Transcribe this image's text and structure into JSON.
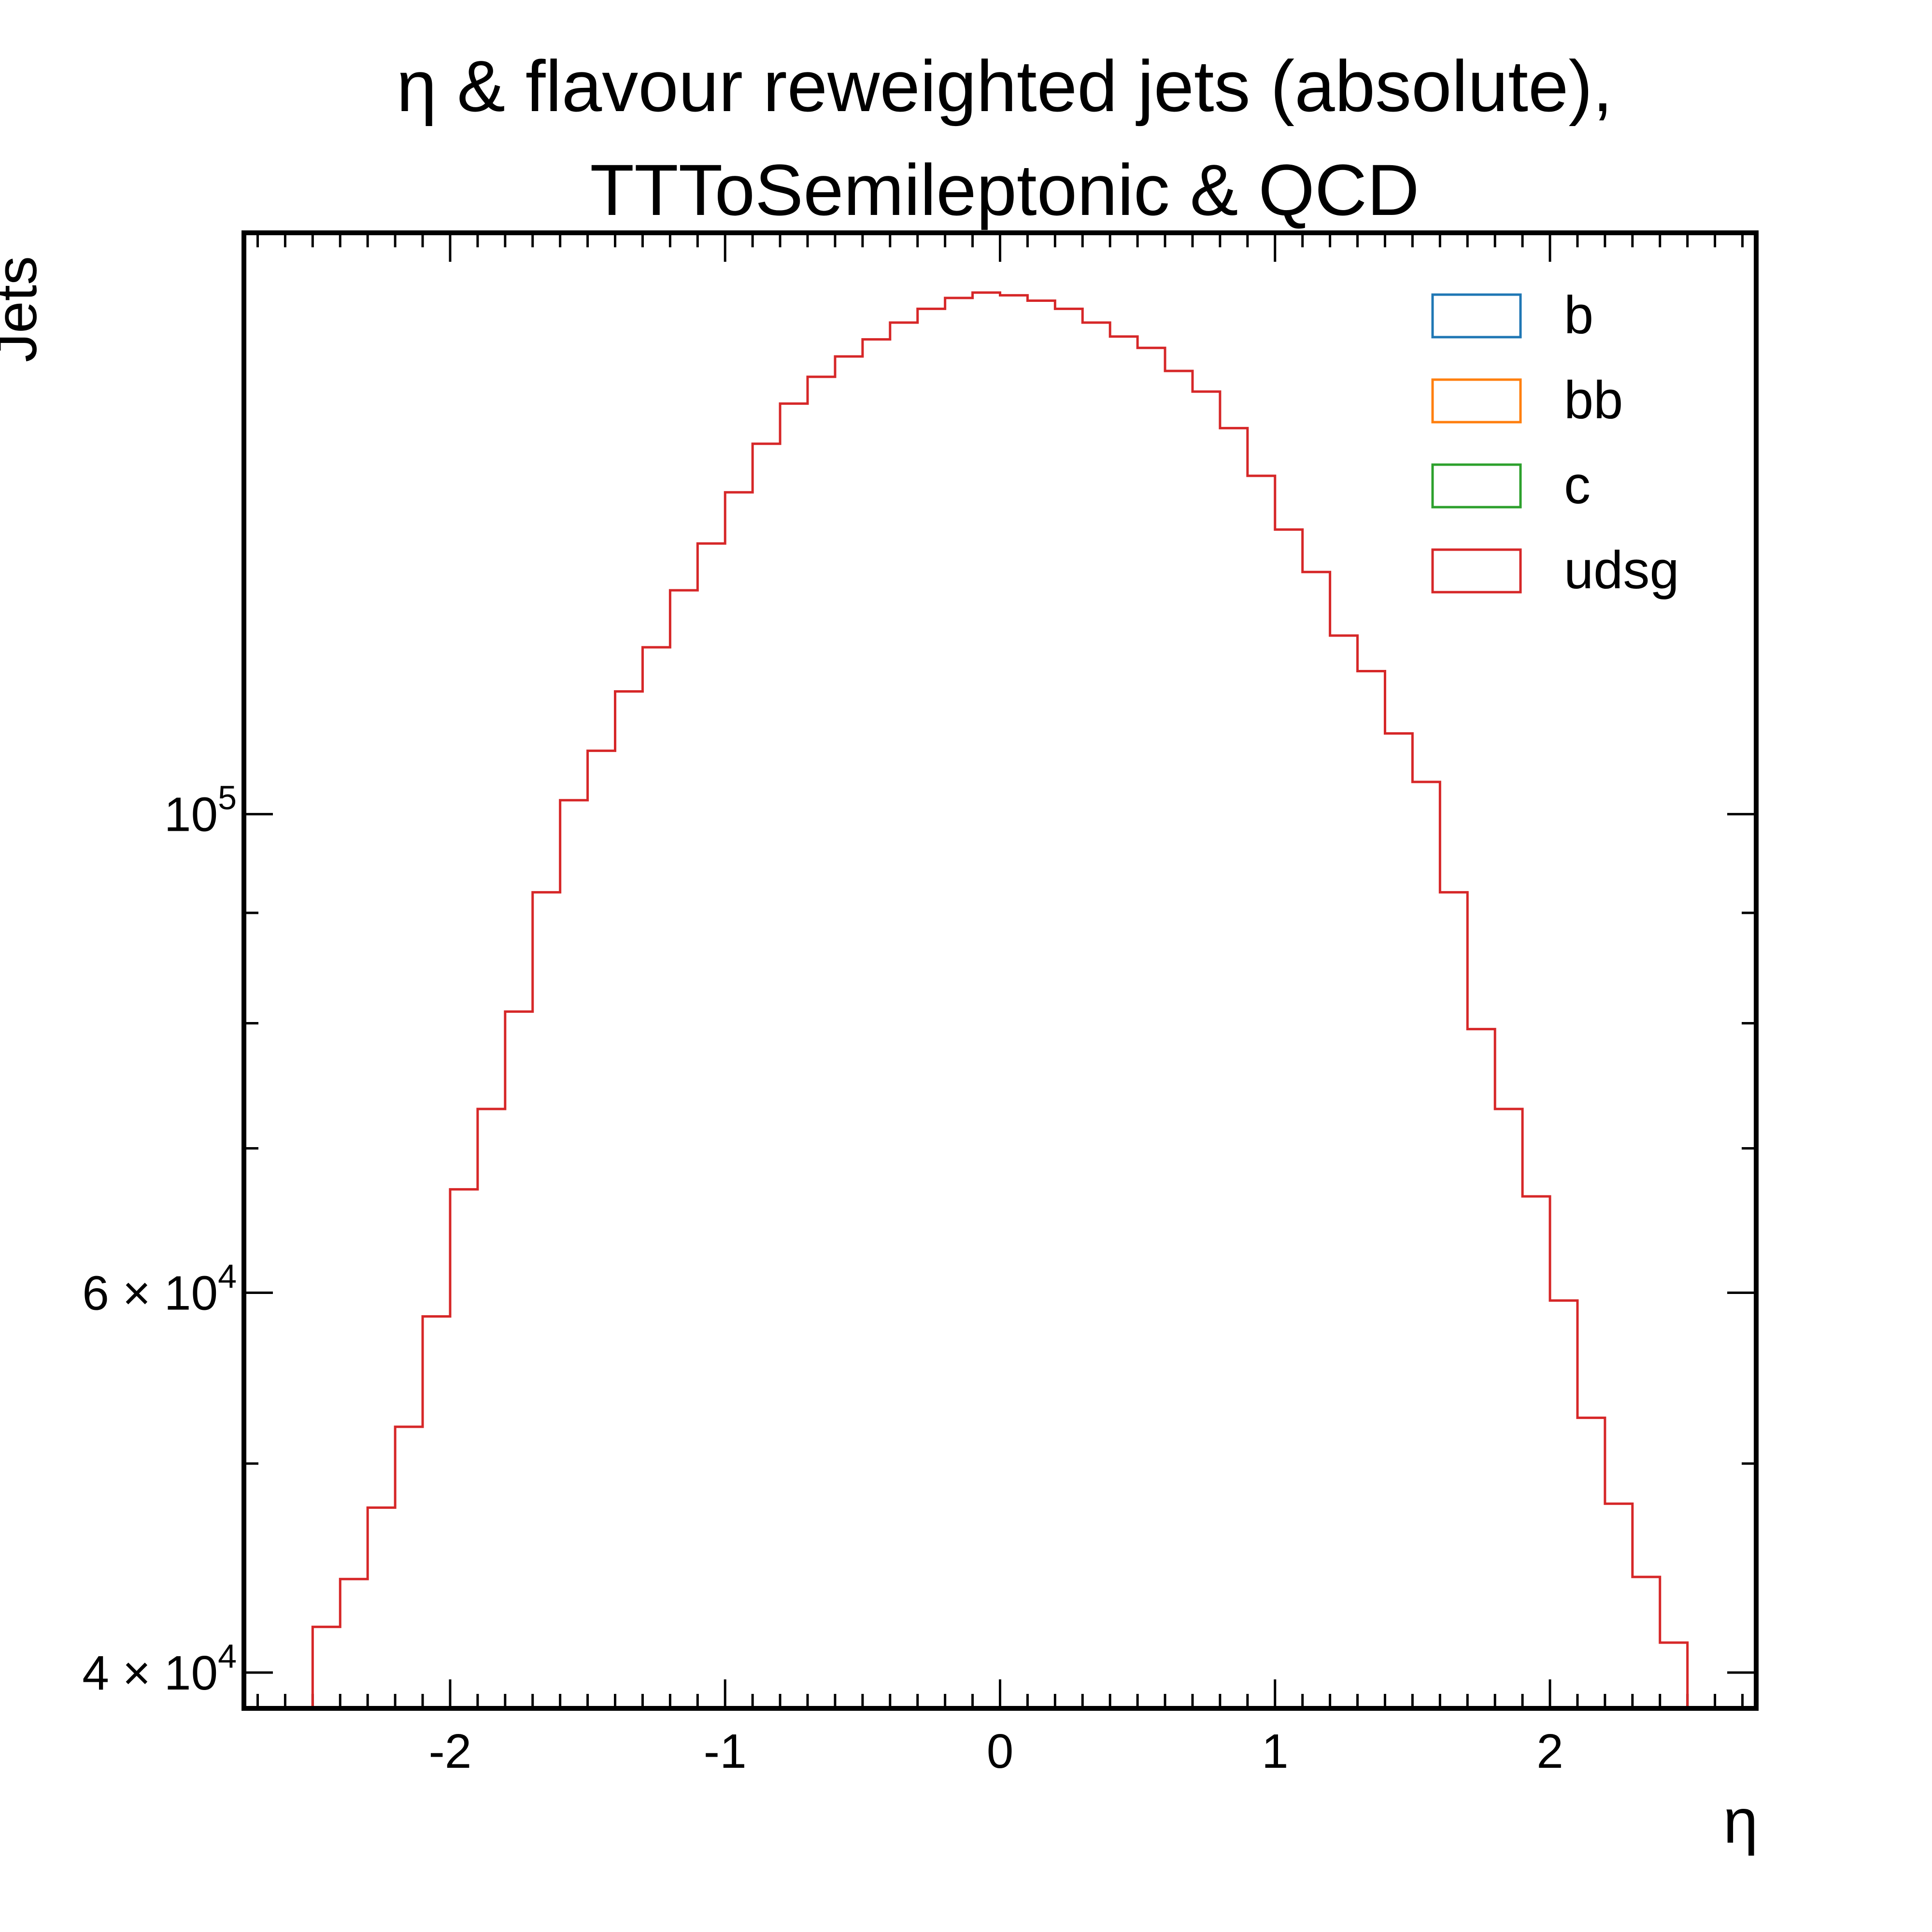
{
  "chart_data": {
    "type": "step-histogram",
    "title_lines": [
      "η & flavour reweighted jets (absolute),",
      "TTToSemileptonic & QCD"
    ],
    "xlabel": "η",
    "ylabel": "Jets",
    "xlim": [
      -2.75,
      2.75
    ],
    "ylim": [
      38500,
      186000
    ],
    "yscale": "log",
    "x_ticks": [
      {
        "value": -2,
        "label": "-2"
      },
      {
        "value": -1,
        "label": "-1"
      },
      {
        "value": 0,
        "label": "0"
      },
      {
        "value": 1,
        "label": "1"
      },
      {
        "value": 2,
        "label": "2"
      }
    ],
    "y_ticks": [
      {
        "value": 100000,
        "mantissa": "",
        "exponent": "5"
      },
      {
        "value": 60000,
        "mantissa": "6 × ",
        "exponent": "4"
      },
      {
        "value": 40000,
        "mantissa": "4 × ",
        "exponent": "4"
      }
    ],
    "y_minor_ticks": [
      50000,
      70000,
      80000,
      90000
    ],
    "legend_position": "top-right",
    "bin_edges": [
      -2.5,
      -2.4,
      -2.3,
      -2.2,
      -2.1,
      -2.0,
      -1.9,
      -1.8,
      -1.7,
      -1.6,
      -1.5,
      -1.4,
      -1.3,
      -1.2,
      -1.1,
      -1.0,
      -0.9,
      -0.8,
      -0.7,
      -0.6,
      -0.5,
      -0.4,
      -0.3,
      -0.2,
      -0.1,
      0.0,
      0.1,
      0.2,
      0.3,
      0.4,
      0.5,
      0.6,
      0.7,
      0.8,
      0.9,
      1.0,
      1.1,
      1.2,
      1.3,
      1.4,
      1.5,
      1.6,
      1.7,
      1.8,
      1.9,
      2.0,
      2.1,
      2.2,
      2.3,
      2.4,
      2.5
    ],
    "series": [
      {
        "name": "b",
        "color": "#1f77b4",
        "values": []
      },
      {
        "name": "bb",
        "color": "#ff7f0e",
        "values": []
      },
      {
        "name": "c",
        "color": "#2ca02c",
        "values": []
      },
      {
        "name": "udsg",
        "color": "#d62728",
        "values": [
          42000,
          44200,
          47700,
          52000,
          58500,
          67000,
          73000,
          81000,
          92000,
          101500,
          107000,
          114000,
          119500,
          127000,
          133500,
          141000,
          148500,
          155000,
          159500,
          163000,
          166000,
          169000,
          171500,
          173500,
          174500,
          174000,
          173000,
          171500,
          169000,
          166500,
          164500,
          160500,
          157000,
          151000,
          143500,
          135500,
          129500,
          121000,
          116500,
          109000,
          103500,
          92000,
          79500,
          73000,
          66500,
          59500,
          52500,
          47900,
          44300,
          41300
        ]
      }
    ]
  }
}
